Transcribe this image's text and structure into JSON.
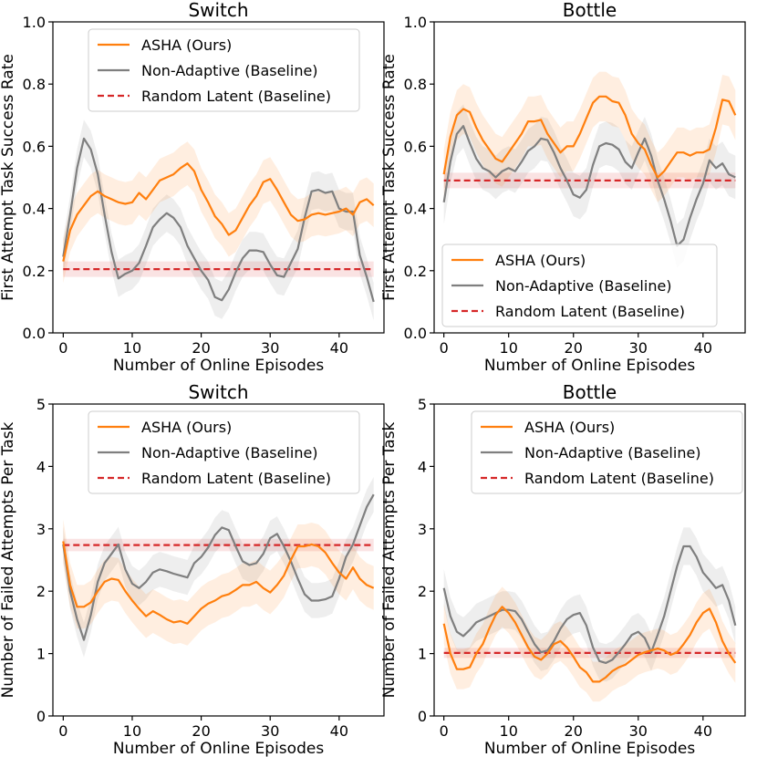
{
  "legend_labels": [
    "ASHA (Ours)",
    "Non-Adaptive (Baseline)",
    "Random Latent (Baseline)"
  ],
  "colors": {
    "asha": "#ff7f0e",
    "nonadaptive": "#7f7f7f",
    "random": "#d62728"
  },
  "chart_data": [
    {
      "type": "line",
      "title": "Switch",
      "xlabel": "Number of Online Episodes",
      "ylabel": "First Attempt Task Success Rate",
      "xlim": [
        -1.5,
        46.5
      ],
      "ylim": [
        0,
        1.0
      ],
      "xticks": [
        0,
        10,
        20,
        30,
        40
      ],
      "yticks": [
        0.0,
        0.2,
        0.4,
        0.6,
        0.8,
        1.0
      ],
      "ytick_labels": [
        "0.0",
        "0.2",
        "0.4",
        "0.6",
        "0.8",
        "1.0"
      ],
      "legend_position": "upper-center",
      "x": [
        0,
        1,
        2,
        3,
        4,
        5,
        6,
        7,
        8,
        9,
        10,
        11,
        12,
        13,
        14,
        15,
        16,
        17,
        18,
        19,
        20,
        21,
        22,
        23,
        24,
        25,
        26,
        27,
        28,
        29,
        30,
        31,
        32,
        33,
        34,
        35,
        36,
        37,
        38,
        39,
        40,
        41,
        42,
        43,
        44,
        45
      ],
      "series": [
        {
          "name": "ASHA (Ours)",
          "color": "#ff7f0e",
          "band": 0.07,
          "values": [
            0.23,
            0.33,
            0.38,
            0.41,
            0.44,
            0.455,
            0.44,
            0.43,
            0.42,
            0.415,
            0.42,
            0.45,
            0.43,
            0.46,
            0.49,
            0.5,
            0.51,
            0.53,
            0.545,
            0.52,
            0.46,
            0.42,
            0.375,
            0.35,
            0.315,
            0.33,
            0.37,
            0.41,
            0.44,
            0.485,
            0.495,
            0.46,
            0.42,
            0.38,
            0.36,
            0.365,
            0.38,
            0.385,
            0.38,
            0.385,
            0.39,
            0.4,
            0.38,
            0.42,
            0.43,
            0.41
          ]
        },
        {
          "name": "Non-Adaptive (Baseline)",
          "color": "#7f7f7f",
          "band": 0.06,
          "values": [
            0.245,
            0.38,
            0.53,
            0.625,
            0.59,
            0.51,
            0.38,
            0.26,
            0.175,
            0.19,
            0.2,
            0.225,
            0.28,
            0.34,
            0.365,
            0.385,
            0.37,
            0.34,
            0.28,
            0.24,
            0.2,
            0.17,
            0.115,
            0.105,
            0.14,
            0.195,
            0.24,
            0.265,
            0.265,
            0.26,
            0.22,
            0.185,
            0.18,
            0.225,
            0.27,
            0.37,
            0.455,
            0.46,
            0.45,
            0.455,
            0.4,
            0.39,
            0.39,
            0.25,
            0.18,
            0.1
          ]
        },
        {
          "name": "Random Latent (Baseline)",
          "color": "#d62728",
          "band": 0.025,
          "dashed": true,
          "values": [
            0.205,
            0.205,
            0.205,
            0.205,
            0.205,
            0.205,
            0.205,
            0.205,
            0.205,
            0.205,
            0.205,
            0.205,
            0.205,
            0.205,
            0.205,
            0.205,
            0.205,
            0.205,
            0.205,
            0.205,
            0.205,
            0.205,
            0.205,
            0.205,
            0.205,
            0.205,
            0.205,
            0.205,
            0.205,
            0.205,
            0.205,
            0.205,
            0.205,
            0.205,
            0.205,
            0.205,
            0.205,
            0.205,
            0.205,
            0.205,
            0.205,
            0.205,
            0.205,
            0.205,
            0.205,
            0.205
          ]
        }
      ]
    },
    {
      "type": "line",
      "title": "Bottle",
      "xlabel": "Number of Online Episodes",
      "ylabel": "First Attempt Task Success Rate",
      "xlim": [
        -1.5,
        46.5
      ],
      "ylim": [
        0,
        1.0
      ],
      "xticks": [
        0,
        10,
        20,
        30,
        40
      ],
      "yticks": [
        0.0,
        0.2,
        0.4,
        0.6,
        0.8,
        1.0
      ],
      "ytick_labels": [
        "0.0",
        "0.2",
        "0.4",
        "0.6",
        "0.8",
        "1.0"
      ],
      "legend_position": "lower-left",
      "x": [
        0,
        1,
        2,
        3,
        4,
        5,
        6,
        7,
        8,
        9,
        10,
        11,
        12,
        13,
        14,
        15,
        16,
        17,
        18,
        19,
        20,
        21,
        22,
        23,
        24,
        25,
        26,
        27,
        28,
        29,
        30,
        31,
        32,
        33,
        34,
        35,
        36,
        37,
        38,
        39,
        40,
        41,
        42,
        43,
        44,
        45
      ],
      "series": [
        {
          "name": "ASHA (Ours)",
          "color": "#ff7f0e",
          "band": 0.08,
          "values": [
            0.51,
            0.63,
            0.7,
            0.72,
            0.71,
            0.66,
            0.62,
            0.59,
            0.56,
            0.55,
            0.58,
            0.61,
            0.64,
            0.68,
            0.68,
            0.685,
            0.64,
            0.61,
            0.58,
            0.6,
            0.6,
            0.64,
            0.69,
            0.74,
            0.76,
            0.76,
            0.745,
            0.74,
            0.7,
            0.64,
            0.61,
            0.59,
            0.54,
            0.5,
            0.52,
            0.55,
            0.58,
            0.58,
            0.57,
            0.58,
            0.58,
            0.59,
            0.66,
            0.75,
            0.745,
            0.7
          ]
        },
        {
          "name": "Non-Adaptive (Baseline)",
          "color": "#7f7f7f",
          "band": 0.07,
          "values": [
            0.42,
            0.55,
            0.64,
            0.665,
            0.61,
            0.56,
            0.53,
            0.52,
            0.5,
            0.52,
            0.53,
            0.52,
            0.55,
            0.585,
            0.6,
            0.625,
            0.62,
            0.58,
            0.53,
            0.49,
            0.445,
            0.435,
            0.46,
            0.54,
            0.6,
            0.61,
            0.605,
            0.59,
            0.55,
            0.53,
            0.58,
            0.625,
            0.57,
            0.49,
            0.43,
            0.36,
            0.28,
            0.3,
            0.37,
            0.43,
            0.48,
            0.555,
            0.53,
            0.545,
            0.51,
            0.5
          ]
        },
        {
          "name": "Random Latent (Baseline)",
          "color": "#d62728",
          "band": 0.025,
          "dashed": true,
          "values": [
            0.49,
            0.49,
            0.49,
            0.49,
            0.49,
            0.49,
            0.49,
            0.49,
            0.49,
            0.49,
            0.49,
            0.49,
            0.49,
            0.49,
            0.49,
            0.49,
            0.49,
            0.49,
            0.49,
            0.49,
            0.49,
            0.49,
            0.49,
            0.49,
            0.49,
            0.49,
            0.49,
            0.49,
            0.49,
            0.49,
            0.49,
            0.49,
            0.49,
            0.49,
            0.49,
            0.49,
            0.49,
            0.49,
            0.49,
            0.49,
            0.49,
            0.49,
            0.49,
            0.49,
            0.49,
            0.49
          ]
        }
      ]
    },
    {
      "type": "line",
      "title": "Switch",
      "xlabel": "Number of Online Episodes",
      "ylabel": "Number of Failed Attempts Per Task",
      "xlim": [
        -1.5,
        46.5
      ],
      "ylim": [
        0,
        5
      ],
      "xticks": [
        0,
        10,
        20,
        30,
        40
      ],
      "yticks": [
        0,
        1,
        2,
        3,
        4,
        5
      ],
      "ytick_labels": [
        "0",
        "1",
        "2",
        "3",
        "4",
        "5"
      ],
      "legend_position": "upper-center",
      "x": [
        0,
        1,
        2,
        3,
        4,
        5,
        6,
        7,
        8,
        9,
        10,
        11,
        12,
        13,
        14,
        15,
        16,
        17,
        18,
        19,
        20,
        21,
        22,
        23,
        24,
        25,
        26,
        27,
        28,
        29,
        30,
        31,
        32,
        33,
        34,
        35,
        36,
        37,
        38,
        39,
        40,
        41,
        42,
        43,
        44,
        45
      ],
      "series": [
        {
          "name": "ASHA (Ours)",
          "color": "#ff7f0e",
          "band": 0.35,
          "values": [
            2.8,
            2.1,
            1.75,
            1.75,
            1.82,
            2.0,
            2.15,
            2.2,
            2.18,
            2.0,
            1.85,
            1.72,
            1.6,
            1.68,
            1.62,
            1.55,
            1.5,
            1.52,
            1.48,
            1.6,
            1.72,
            1.8,
            1.85,
            1.92,
            1.95,
            2.02,
            2.1,
            2.1,
            2.15,
            2.05,
            1.98,
            2.1,
            2.25,
            2.5,
            2.72,
            2.72,
            2.75,
            2.72,
            2.62,
            2.45,
            2.3,
            2.2,
            2.38,
            2.2,
            2.1,
            2.05
          ]
        },
        {
          "name": "Non-Adaptive (Baseline)",
          "color": "#7f7f7f",
          "band": 0.28,
          "values": [
            2.75,
            2.0,
            1.55,
            1.22,
            1.62,
            2.15,
            2.45,
            2.6,
            2.75,
            2.35,
            2.12,
            2.05,
            2.15,
            2.3,
            2.35,
            2.32,
            2.28,
            2.25,
            2.22,
            2.45,
            2.55,
            2.7,
            2.9,
            3.02,
            2.98,
            2.72,
            2.48,
            2.42,
            2.45,
            2.6,
            2.85,
            2.92,
            2.72,
            2.48,
            2.2,
            1.95,
            1.85,
            1.85,
            1.87,
            1.92,
            2.2,
            2.55,
            2.75,
            3.05,
            3.35,
            3.55
          ]
        },
        {
          "name": "Random Latent (Baseline)",
          "color": "#d62728",
          "band": 0.1,
          "dashed": true,
          "values": [
            2.74,
            2.74,
            2.74,
            2.74,
            2.74,
            2.74,
            2.74,
            2.74,
            2.74,
            2.74,
            2.74,
            2.74,
            2.74,
            2.74,
            2.74,
            2.74,
            2.74,
            2.74,
            2.74,
            2.74,
            2.74,
            2.74,
            2.74,
            2.74,
            2.74,
            2.74,
            2.74,
            2.74,
            2.74,
            2.74,
            2.74,
            2.74,
            2.74,
            2.74,
            2.74,
            2.74,
            2.74,
            2.74,
            2.74,
            2.74,
            2.74,
            2.74,
            2.74,
            2.74,
            2.74,
            2.74
          ]
        }
      ]
    },
    {
      "type": "line",
      "title": "Bottle",
      "xlabel": "Number of Online Episodes",
      "ylabel": "Number of Failed Attempts Per Task",
      "xlim": [
        -1.5,
        46.5
      ],
      "ylim": [
        0,
        5
      ],
      "xticks": [
        0,
        10,
        20,
        30,
        40
      ],
      "yticks": [
        0,
        1,
        2,
        3,
        4,
        5
      ],
      "ytick_labels": [
        "0",
        "1",
        "2",
        "3",
        "4",
        "5"
      ],
      "legend_position": "upper-center",
      "x": [
        0,
        1,
        2,
        3,
        4,
        5,
        6,
        7,
        8,
        9,
        10,
        11,
        12,
        13,
        14,
        15,
        16,
        17,
        18,
        19,
        20,
        21,
        22,
        23,
        24,
        25,
        26,
        27,
        28,
        29,
        30,
        31,
        32,
        33,
        34,
        35,
        36,
        37,
        38,
        39,
        40,
        41,
        42,
        43,
        44,
        45
      ],
      "series": [
        {
          "name": "ASHA (Ours)",
          "color": "#ff7f0e",
          "band": 0.32,
          "values": [
            1.48,
            1.0,
            0.75,
            0.75,
            0.78,
            1.0,
            1.15,
            1.4,
            1.62,
            1.75,
            1.65,
            1.5,
            1.3,
            1.1,
            0.95,
            0.9,
            1.0,
            1.15,
            1.2,
            1.1,
            0.95,
            0.78,
            0.7,
            0.55,
            0.55,
            0.62,
            0.72,
            0.78,
            0.82,
            0.9,
            0.98,
            1.02,
            1.05,
            1.08,
            1.05,
            0.98,
            1.02,
            1.15,
            1.3,
            1.5,
            1.65,
            1.72,
            1.5,
            1.2,
            1.0,
            0.85
          ]
        },
        {
          "name": "Non-Adaptive (Baseline)",
          "color": "#7f7f7f",
          "band": 0.3,
          "values": [
            2.05,
            1.6,
            1.35,
            1.28,
            1.38,
            1.5,
            1.55,
            1.6,
            1.65,
            1.7,
            1.7,
            1.68,
            1.55,
            1.35,
            1.15,
            1.02,
            1.05,
            1.2,
            1.4,
            1.55,
            1.62,
            1.65,
            1.45,
            1.1,
            0.88,
            0.85,
            0.9,
            1.02,
            1.15,
            1.3,
            1.35,
            1.25,
            1.02,
            1.3,
            1.6,
            2.0,
            2.4,
            2.72,
            2.72,
            2.55,
            2.3,
            2.18,
            2.05,
            2.1,
            1.85,
            1.45
          ]
        },
        {
          "name": "Random Latent (Baseline)",
          "color": "#d62728",
          "band": 0.08,
          "dashed": true,
          "values": [
            1.01,
            1.01,
            1.01,
            1.01,
            1.01,
            1.01,
            1.01,
            1.01,
            1.01,
            1.01,
            1.01,
            1.01,
            1.01,
            1.01,
            1.01,
            1.01,
            1.01,
            1.01,
            1.01,
            1.01,
            1.01,
            1.01,
            1.01,
            1.01,
            1.01,
            1.01,
            1.01,
            1.01,
            1.01,
            1.01,
            1.01,
            1.01,
            1.01,
            1.01,
            1.01,
            1.01,
            1.01,
            1.01,
            1.01,
            1.01,
            1.01,
            1.01,
            1.01,
            1.01,
            1.01,
            1.01
          ]
        }
      ]
    }
  ]
}
